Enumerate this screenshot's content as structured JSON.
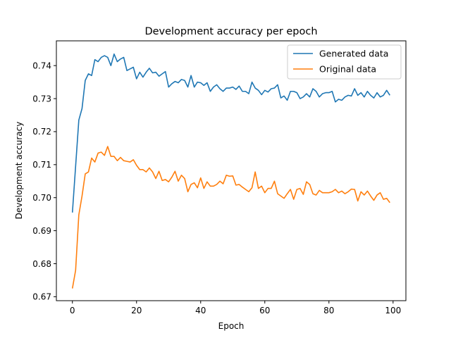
{
  "chart_data": {
    "type": "line",
    "title": "Development accuracy per epoch",
    "xlabel": "Epoch",
    "ylabel": "Development accuracy",
    "xlim": [
      -5,
      104
    ],
    "ylim": [
      0.6688,
      0.7475
    ],
    "xticks": [
      0,
      20,
      40,
      60,
      80,
      100
    ],
    "xtick_labels": [
      "0",
      "20",
      "40",
      "60",
      "80",
      "100"
    ],
    "yticks": [
      0.67,
      0.68,
      0.69,
      0.7,
      0.71,
      0.72,
      0.73,
      0.74
    ],
    "ytick_labels": [
      "0.67",
      "0.68",
      "0.69",
      "0.70",
      "0.71",
      "0.72",
      "0.73",
      "0.74"
    ],
    "grid": false,
    "legend_position": "top-right",
    "series": [
      {
        "name": "Generated data",
        "color": "#1f77b4",
        "values": [
          0.6955,
          0.7095,
          0.7235,
          0.727,
          0.7355,
          0.7375,
          0.737,
          0.7418,
          0.7412,
          0.7425,
          0.743,
          0.7425,
          0.74,
          0.7435,
          0.7412,
          0.742,
          0.7425,
          0.7385,
          0.739,
          0.7395,
          0.736,
          0.738,
          0.7365,
          0.738,
          0.7392,
          0.7378,
          0.738,
          0.7368,
          0.7375,
          0.7382,
          0.7335,
          0.7345,
          0.7352,
          0.7348,
          0.7358,
          0.7355,
          0.7335,
          0.737,
          0.7335,
          0.735,
          0.7348,
          0.734,
          0.7348,
          0.7322,
          0.7335,
          0.7342,
          0.733,
          0.7322,
          0.7332,
          0.7332,
          0.7335,
          0.7328,
          0.7338,
          0.7322,
          0.7322,
          0.7315,
          0.735,
          0.7332,
          0.7325,
          0.7312,
          0.7325,
          0.732,
          0.733,
          0.7332,
          0.7342,
          0.7302,
          0.7308,
          0.7295,
          0.7322,
          0.7322,
          0.7318,
          0.73,
          0.7305,
          0.7315,
          0.7305,
          0.733,
          0.7322,
          0.7305,
          0.7315,
          0.7318,
          0.7318,
          0.7322,
          0.729,
          0.7298,
          0.7295,
          0.7305,
          0.731,
          0.7308,
          0.733,
          0.731,
          0.7318,
          0.7305,
          0.7322,
          0.731,
          0.7302,
          0.7318,
          0.7305,
          0.731,
          0.7325,
          0.731
        ]
      },
      {
        "name": "Original data",
        "color": "#ff7f0e",
        "values": [
          0.6725,
          0.678,
          0.6948,
          0.7005,
          0.7072,
          0.7078,
          0.712,
          0.7108,
          0.7135,
          0.7138,
          0.7128,
          0.7155,
          0.7125,
          0.7125,
          0.7112,
          0.7122,
          0.7112,
          0.711,
          0.7108,
          0.7115,
          0.7098,
          0.7085,
          0.7085,
          0.7078,
          0.709,
          0.7078,
          0.7058,
          0.708,
          0.7052,
          0.7055,
          0.7048,
          0.7062,
          0.708,
          0.705,
          0.7068,
          0.7058,
          0.7018,
          0.704,
          0.7045,
          0.703,
          0.706,
          0.7028,
          0.7048,
          0.7035,
          0.7035,
          0.704,
          0.705,
          0.7042,
          0.7068,
          0.7065,
          0.7066,
          0.7038,
          0.704,
          0.7032,
          0.7025,
          0.7018,
          0.703,
          0.7078,
          0.7028,
          0.7035,
          0.7015,
          0.7028,
          0.7028,
          0.705,
          0.7012,
          0.7005,
          0.6998,
          0.7012,
          0.7025,
          0.6995,
          0.7025,
          0.7028,
          0.701,
          0.7048,
          0.704,
          0.7012,
          0.7008,
          0.7022,
          0.7015,
          0.7015,
          0.7015,
          0.7018,
          0.7025,
          0.7015,
          0.702,
          0.7012,
          0.7018,
          0.7026,
          0.7025,
          0.699,
          0.7018,
          0.7008,
          0.702,
          0.7005,
          0.6992,
          0.7008,
          0.7015,
          0.6995,
          0.6998,
          0.6985
        ]
      }
    ]
  }
}
